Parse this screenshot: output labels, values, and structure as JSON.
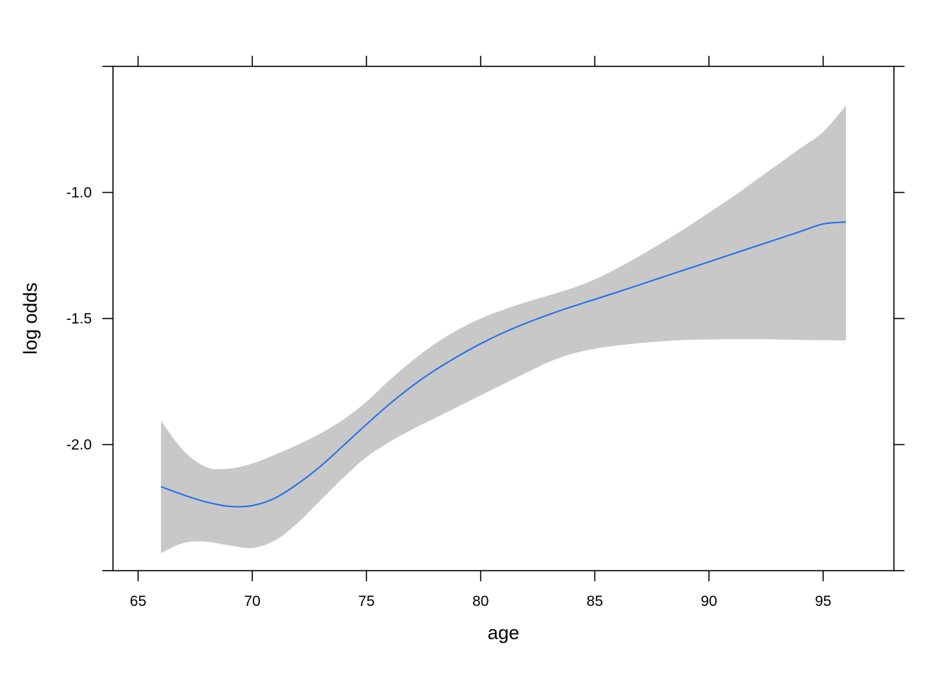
{
  "chart_data": {
    "type": "line",
    "title": "",
    "xlabel": "age",
    "ylabel": "log odds",
    "xlim": [
      63.9,
      98.1
    ],
    "ylim": [
      -2.5,
      -0.5
    ],
    "x_ticks": [
      65,
      70,
      75,
      80,
      85,
      90,
      95
    ],
    "x_tick_labels": [
      "65",
      "70",
      "75",
      "80",
      "85",
      "90",
      "95"
    ],
    "y_ticks": [
      -1.0,
      -1.5,
      -2.0
    ],
    "y_tick_labels": [
      "-1.0",
      "-1.5",
      "-2.0"
    ],
    "grid": false,
    "colors": {
      "line": "#1f6fe8",
      "band": "#c8c8c8",
      "axis": "#000000"
    },
    "series": [
      {
        "x": [
          66,
          67,
          68,
          69,
          70,
          71,
          72,
          73,
          74,
          75,
          76,
          77,
          78,
          79,
          80,
          81,
          82,
          83,
          84,
          85,
          86,
          87,
          88,
          89,
          90,
          91,
          92,
          93,
          94,
          95,
          96
        ],
        "fit": [
          -2.167,
          -2.2,
          -2.228,
          -2.245,
          -2.242,
          -2.212,
          -2.155,
          -2.085,
          -2.003,
          -1.92,
          -1.84,
          -1.768,
          -1.705,
          -1.65,
          -1.6,
          -1.556,
          -1.518,
          -1.484,
          -1.453,
          -1.424,
          -1.395,
          -1.365,
          -1.335,
          -1.305,
          -1.275,
          -1.245,
          -1.215,
          -1.185,
          -1.155,
          -1.125,
          -1.117
        ],
        "lower": [
          -2.43,
          -2.39,
          -2.385,
          -2.4,
          -2.41,
          -2.38,
          -2.31,
          -2.22,
          -2.13,
          -2.05,
          -1.99,
          -1.94,
          -1.895,
          -1.85,
          -1.805,
          -1.76,
          -1.715,
          -1.672,
          -1.64,
          -1.62,
          -1.607,
          -1.597,
          -1.59,
          -1.585,
          -1.583,
          -1.582,
          -1.582,
          -1.583,
          -1.585,
          -1.586,
          -1.587
        ],
        "upper": [
          -1.905,
          -2.025,
          -2.09,
          -2.095,
          -2.075,
          -2.04,
          -2.0,
          -1.955,
          -1.9,
          -1.83,
          -1.745,
          -1.668,
          -1.6,
          -1.545,
          -1.5,
          -1.465,
          -1.435,
          -1.408,
          -1.38,
          -1.345,
          -1.3,
          -1.25,
          -1.196,
          -1.14,
          -1.08,
          -1.02,
          -0.955,
          -0.89,
          -0.825,
          -0.76,
          -0.655
        ]
      }
    ]
  }
}
